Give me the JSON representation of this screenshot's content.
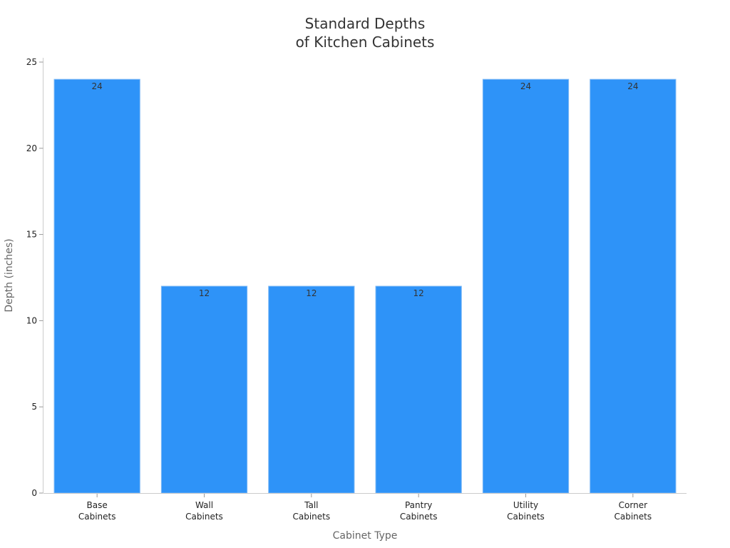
{
  "chart_data": {
    "type": "bar",
    "title_lines": [
      "Standard Depths",
      "of Kitchen Cabinets"
    ],
    "xlabel": "Cabinet Type",
    "ylabel": "Depth (inches)",
    "categories": [
      [
        "Base",
        "Cabinets"
      ],
      [
        "Wall",
        "Cabinets"
      ],
      [
        "Tall",
        "Cabinets"
      ],
      [
        "Pantry",
        "Cabinets"
      ],
      [
        "Utility",
        "Cabinets"
      ],
      [
        "Corner",
        "Cabinets"
      ]
    ],
    "values": [
      24,
      12,
      12,
      12,
      24,
      24
    ],
    "ylim": [
      0,
      25
    ],
    "yticks": [
      0,
      5,
      10,
      15,
      20,
      25
    ],
    "grid": false,
    "bar_color": "#2e93f8",
    "bar_edge_color": "#7fb9f5"
  }
}
